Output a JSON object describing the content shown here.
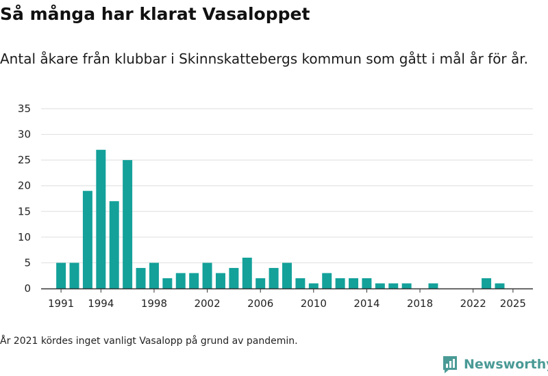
{
  "title": "Så många har klarat Vasaloppet",
  "subtitle": "Antal åkare från klubbar i Skinnskattebergs kommun som gått i mål år för år.",
  "footnote": "År 2021 kördes inget vanligt Vasalopp på grund av pandemin.",
  "brand": {
    "name": "Newsworthy",
    "icon": "newsworthy-logo-icon",
    "color": "#4a9a96"
  },
  "chart_data": {
    "type": "bar",
    "bar_color": "#13a19a",
    "grid": true,
    "xlabel": "",
    "ylabel": "",
    "ylim": [
      0,
      35
    ],
    "yticks": [
      0,
      5,
      10,
      15,
      20,
      25,
      30,
      35
    ],
    "xticks": [
      1991,
      1994,
      1998,
      2002,
      2006,
      2010,
      2014,
      2018,
      2022,
      2025
    ],
    "xlim": [
      1989.5,
      2026.5
    ],
    "categories": [
      1991,
      1992,
      1993,
      1994,
      1995,
      1996,
      1997,
      1998,
      1999,
      2000,
      2001,
      2002,
      2003,
      2004,
      2005,
      2006,
      2007,
      2008,
      2009,
      2010,
      2011,
      2012,
      2013,
      2014,
      2015,
      2016,
      2017,
      2018,
      2019,
      2020,
      2021,
      2022,
      2023,
      2024,
      2025
    ],
    "values": [
      5,
      5,
      19,
      27,
      17,
      25,
      4,
      5,
      2,
      3,
      3,
      5,
      3,
      4,
      6,
      2,
      4,
      5,
      2,
      1,
      3,
      2,
      2,
      2,
      1,
      1,
      1,
      0,
      1,
      0,
      0,
      0,
      2,
      1,
      0
    ]
  }
}
